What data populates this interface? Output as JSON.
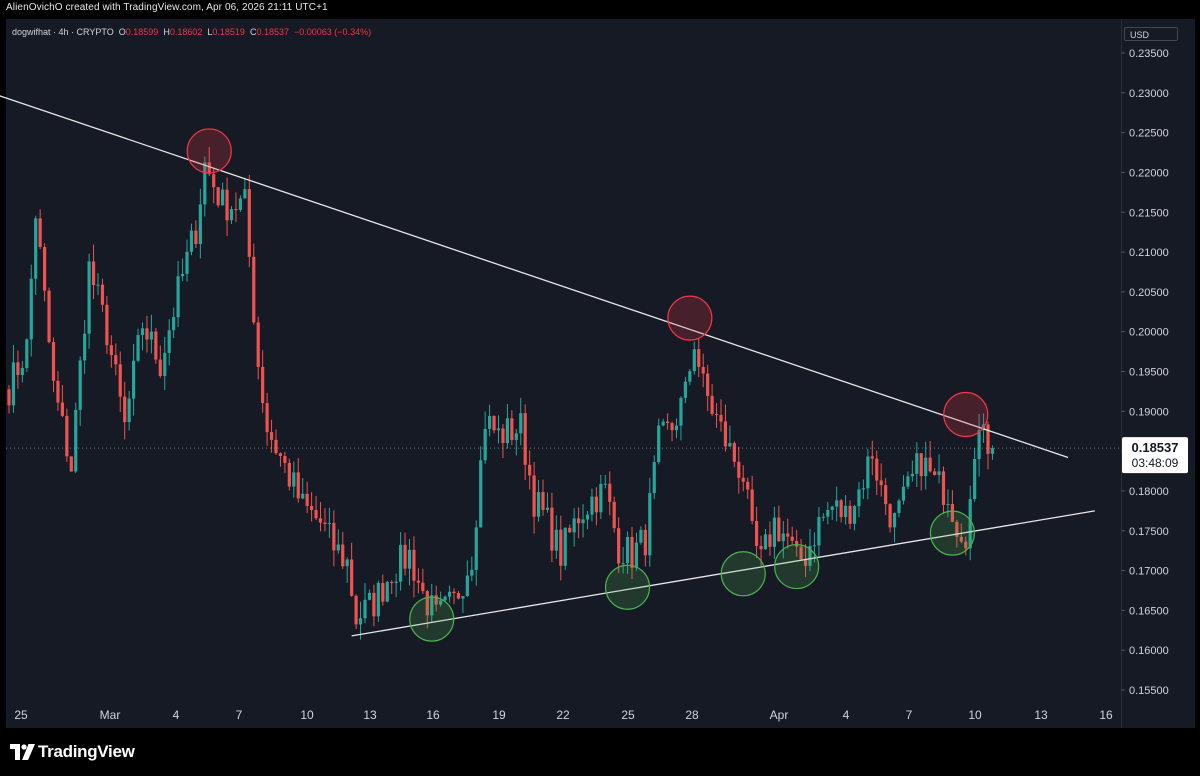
{
  "header": {
    "credit": "AlienOvichO created with TradingView.com, Apr 06, 2026 21:11 UTC+1",
    "symbol": "dogwifhat · 4h · CRYPTO",
    "o_label": "O",
    "o_value": "0.18599",
    "h_label": "H",
    "h_value": "0.18602",
    "l_label": "L",
    "l_value": "0.18519",
    "c_label": "C",
    "c_value": "0.18537",
    "change": "−0.00063 (−0.34%)"
  },
  "price_axis": {
    "currency": "USD"
  },
  "last_price": {
    "value": "0.18537",
    "countdown": "03:48:09"
  },
  "footer": {
    "brand": "TradingView"
  },
  "colors": {
    "background": "#161a25",
    "up": "#26a69a",
    "down": "#ef5350",
    "trendline": "#e8e8e8",
    "resistance_marker": "#f23645",
    "support_marker": "#4caf50",
    "text": "#d1d4dc"
  },
  "icons": {
    "brand_logo": "tradingview-logo-icon"
  },
  "chart_data": {
    "type": "candlestick",
    "title": "dogwifhat · 4h · CRYPTO",
    "interval": "4h",
    "ylim": [
      0.155,
      0.236
    ],
    "y_ticks": [
      "0.15500",
      "0.16000",
      "0.16500",
      "0.17000",
      "0.17500",
      "0.18000",
      "0.18500",
      "0.19000",
      "0.19500",
      "0.20000",
      "0.20500",
      "0.21000",
      "0.21500",
      "0.22000",
      "0.22500",
      "0.23000",
      "0.23500"
    ],
    "x_ticks": [
      "25",
      "Mar",
      "4",
      "7",
      "10",
      "13",
      "16",
      "19",
      "22",
      "25",
      "28",
      "Apr",
      "4",
      "7",
      "10",
      "13",
      "16"
    ],
    "anchors": [
      {
        "x": 0,
        "y": 0.193
      },
      {
        "x": 4,
        "y": 0.198
      },
      {
        "x": 6,
        "y": 0.215
      },
      {
        "x": 10,
        "y": 0.193
      },
      {
        "x": 14,
        "y": 0.183
      },
      {
        "x": 18,
        "y": 0.208
      },
      {
        "x": 22,
        "y": 0.2
      },
      {
        "x": 26,
        "y": 0.188
      },
      {
        "x": 30,
        "y": 0.201
      },
      {
        "x": 34,
        "y": 0.196
      },
      {
        "x": 38,
        "y": 0.205
      },
      {
        "x": 42,
        "y": 0.213
      },
      {
        "x": 44,
        "y": 0.221
      },
      {
        "x": 48,
        "y": 0.216
      },
      {
        "x": 53,
        "y": 0.216
      },
      {
        "x": 56,
        "y": 0.196
      },
      {
        "x": 58,
        "y": 0.188
      },
      {
        "x": 62,
        "y": 0.183
      },
      {
        "x": 66,
        "y": 0.178
      },
      {
        "x": 70,
        "y": 0.176
      },
      {
        "x": 73,
        "y": 0.173
      },
      {
        "x": 76,
        "y": 0.171
      },
      {
        "x": 78,
        "y": 0.164
      },
      {
        "x": 82,
        "y": 0.166
      },
      {
        "x": 86,
        "y": 0.17
      },
      {
        "x": 90,
        "y": 0.172
      },
      {
        "x": 93,
        "y": 0.167
      },
      {
        "x": 96,
        "y": 0.164
      },
      {
        "x": 100,
        "y": 0.166
      },
      {
        "x": 104,
        "y": 0.172
      },
      {
        "x": 107,
        "y": 0.189
      },
      {
        "x": 110,
        "y": 0.187
      },
      {
        "x": 115,
        "y": 0.188
      },
      {
        "x": 118,
        "y": 0.179
      },
      {
        "x": 121,
        "y": 0.176
      },
      {
        "x": 124,
        "y": 0.172
      },
      {
        "x": 128,
        "y": 0.177
      },
      {
        "x": 131,
        "y": 0.179
      },
      {
        "x": 134,
        "y": 0.18
      },
      {
        "x": 137,
        "y": 0.173
      },
      {
        "x": 140,
        "y": 0.172
      },
      {
        "x": 143,
        "y": 0.174
      },
      {
        "x": 146,
        "y": 0.186
      },
      {
        "x": 149,
        "y": 0.188
      },
      {
        "x": 152,
        "y": 0.192
      },
      {
        "x": 154,
        "y": 0.199
      },
      {
        "x": 156,
        "y": 0.193
      },
      {
        "x": 159,
        "y": 0.189
      },
      {
        "x": 162,
        "y": 0.185
      },
      {
        "x": 165,
        "y": 0.182
      },
      {
        "x": 167,
        "y": 0.174
      },
      {
        "x": 169,
        "y": 0.171
      },
      {
        "x": 172,
        "y": 0.176
      },
      {
        "x": 175,
        "y": 0.174
      },
      {
        "x": 177,
        "y": 0.171
      },
      {
        "x": 179,
        "y": 0.172
      },
      {
        "x": 182,
        "y": 0.176
      },
      {
        "x": 185,
        "y": 0.178
      },
      {
        "x": 188,
        "y": 0.177
      },
      {
        "x": 191,
        "y": 0.18
      },
      {
        "x": 194,
        "y": 0.185
      },
      {
        "x": 196,
        "y": 0.18
      },
      {
        "x": 199,
        "y": 0.176
      },
      {
        "x": 202,
        "y": 0.18
      },
      {
        "x": 205,
        "y": 0.184
      },
      {
        "x": 208,
        "y": 0.181
      },
      {
        "x": 211,
        "y": 0.18
      },
      {
        "x": 213,
        "y": 0.176
      },
      {
        "x": 215,
        "y": 0.175
      },
      {
        "x": 217,
        "y": 0.182
      },
      {
        "x": 218,
        "y": 0.189
      },
      {
        "x": 219,
        "y": 0.19
      },
      {
        "x": 220,
        "y": 0.186
      },
      {
        "x": 221,
        "y": 0.18537
      }
    ],
    "trendlines": [
      {
        "name": "resistance",
        "from": {
          "x": -3,
          "y": 0.2298
        },
        "to": {
          "x": 238,
          "y": 0.1842
        }
      },
      {
        "name": "support",
        "from": {
          "x": 77,
          "y": 0.1618
        },
        "to": {
          "x": 244,
          "y": 0.1775
        }
      }
    ],
    "markers": [
      {
        "kind": "resistance",
        "x": 45,
        "y": 0.2227
      },
      {
        "kind": "resistance",
        "x": 153,
        "y": 0.2017
      },
      {
        "kind": "resistance",
        "x": 215,
        "y": 0.1896
      },
      {
        "kind": "support",
        "x": 95,
        "y": 0.1639
      },
      {
        "kind": "support",
        "x": 139,
        "y": 0.1679
      },
      {
        "kind": "support",
        "x": 165,
        "y": 0.1696
      },
      {
        "kind": "support",
        "x": 177,
        "y": 0.1705
      },
      {
        "kind": "support",
        "x": 212,
        "y": 0.1747
      }
    ],
    "last_value": 0.18537
  }
}
